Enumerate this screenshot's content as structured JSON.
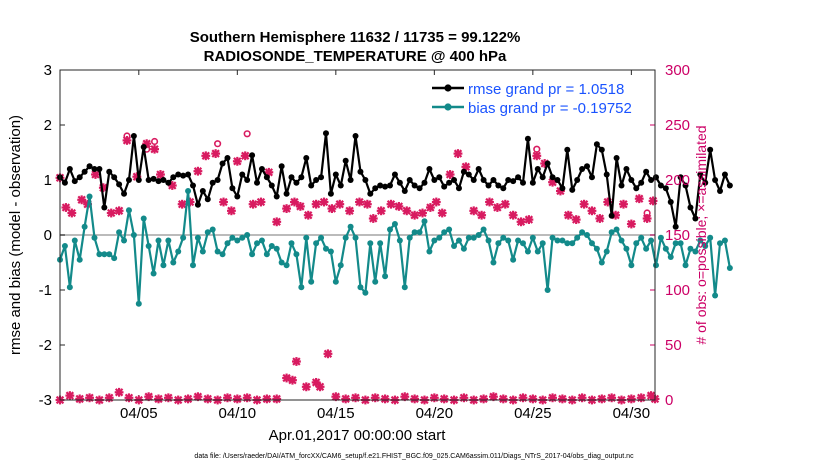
{
  "chart_data": {
    "type": "line",
    "title": "Southern Hemisphere 11632 / 11735 = 99.122%",
    "subtitle": "RADIOSONDE_TEMPERATURE @ 400 hPa",
    "ylabel": "rmse and bias (model - observation)",
    "ylabel_right": "# of obs: o=possible; ×=assimilated",
    "xlabel": "Apr.01,2017 00:00:00 start",
    "footer": "data file: /Users/raeder/DAI/ATM_forcXX/CAM6_setup/f.e21.FHIST_BGC.f09_025.CAM6assim.011/Diags_NTrS_2017-04/obs_diag_output.nc",
    "xlim": [
      1.0,
      31.2
    ],
    "ylim": [
      -3,
      3
    ],
    "ylim_right": [
      0,
      300
    ],
    "x_ticks": [
      {
        "x": 5,
        "label": "04/05"
      },
      {
        "x": 10,
        "label": "04/10"
      },
      {
        "x": 15,
        "label": "04/15"
      },
      {
        "x": 20,
        "label": "04/20"
      },
      {
        "x": 25,
        "label": "04/25"
      },
      {
        "x": 30,
        "label": "04/30"
      }
    ],
    "y_ticks": [
      "-3",
      "-2",
      "-1",
      "0",
      "1",
      "2",
      "3"
    ],
    "y_ticks_right": [
      "0",
      "50",
      "100",
      "150",
      "200",
      "250",
      "300"
    ],
    "legend": {
      "placement": "top-right",
      "entries": [
        "rmse grand pr = 1.0518",
        "bias grand pr = -0.19752"
      ]
    },
    "colors": {
      "rmse": "#000000",
      "bias": "#138a8a",
      "obs": "#d81b60",
      "legend_text": "#1a53ff",
      "right_axis": "#cc0066",
      "zero_line": "#bbbbbb"
    },
    "x_start": 1.0,
    "x_step": 0.25,
    "series": [
      {
        "name": "rmse",
        "values": [
          1.05,
          0.95,
          1.2,
          0.98,
          1.05,
          1.15,
          1.25,
          1.2,
          1.2,
          0.5,
          1.15,
          1.05,
          0.92,
          0.75,
          1.0,
          1.8,
          1.0,
          1.6,
          1.0,
          1.02,
          0.98,
          1.0,
          0.95,
          1.05,
          1.1,
          1.08,
          1.1,
          0.9,
          0.55,
          0.8,
          0.65,
          0.95,
          1.0,
          1.3,
          1.4,
          0.85,
          0.7,
          1.1,
          1.0,
          1.45,
          0.95,
          1.2,
          1.05,
          0.9,
          0.7,
          1.25,
          0.75,
          1.05,
          0.95,
          1.05,
          1.4,
          0.9,
          1.0,
          1.05,
          1.85,
          0.75,
          1.1,
          0.9,
          1.35,
          1.0,
          1.8,
          1.15,
          1.0,
          0.75,
          0.85,
          0.9,
          0.88,
          0.9,
          1.1,
          0.95,
          0.8,
          1.0,
          0.9,
          0.85,
          0.95,
          1.2,
          1.0,
          1.05,
          0.88,
          0.95,
          1.0,
          0.85,
          1.15,
          1.1,
          1.0,
          1.2,
          1.0,
          0.9,
          1.0,
          0.9,
          0.85,
          1.0,
          0.98,
          1.05,
          0.95,
          1.75,
          0.95,
          1.2,
          1.05,
          1.3,
          1.05,
          1.0,
          0.85,
          1.55,
          0.82,
          1.0,
          1.2,
          1.25,
          1.05,
          1.65,
          1.55,
          1.1,
          0.35,
          1.4,
          0.9,
          1.2,
          1.0,
          0.85,
          0.95,
          1.15,
          1.0,
          1.05,
          0.9,
          0.85,
          0.6,
          0.15,
          1.05,
          0.9,
          0.5,
          0.3,
          1.1,
          0.95,
          1.55,
          1.0,
          0.8,
          1.1,
          0.9
        ]
      },
      {
        "name": "bias",
        "values": [
          -0.45,
          -0.2,
          -0.95,
          -0.1,
          -0.45,
          0.15,
          0.7,
          -0.05,
          -0.35,
          -0.35,
          -0.35,
          -0.42,
          0.05,
          -0.1,
          0.45,
          0.0,
          -1.25,
          0.3,
          -0.2,
          -0.7,
          -0.1,
          -0.55,
          -0.1,
          -0.5,
          -0.3,
          -0.05,
          0.8,
          -0.55,
          -0.05,
          -0.3,
          0.05,
          0.1,
          -0.3,
          -0.35,
          -0.15,
          -0.05,
          -0.1,
          -0.05,
          0.0,
          -0.35,
          -0.15,
          -0.1,
          -0.35,
          -0.2,
          -0.25,
          -0.5,
          -0.55,
          -0.15,
          -0.35,
          -0.95,
          -0.05,
          -0.85,
          -0.15,
          -0.05,
          -0.25,
          -0.3,
          -0.85,
          -0.55,
          -0.05,
          0.15,
          -0.05,
          -0.95,
          -1.05,
          -0.15,
          -0.85,
          -0.15,
          -0.75,
          0.1,
          0.2,
          -0.1,
          -0.95,
          -0.05,
          0.05,
          0.05,
          0.25,
          -0.3,
          -0.1,
          -0.05,
          0.05,
          0.1,
          -0.2,
          -0.1,
          -0.25,
          -0.05,
          -0.05,
          0.0,
          0.1,
          -0.1,
          -0.5,
          -0.15,
          -0.05,
          -0.1,
          -0.45,
          -0.1,
          -0.15,
          -0.3,
          -0.05,
          -0.3,
          -0.15,
          -1.0,
          -0.05,
          -0.1,
          -0.1,
          -0.15,
          -0.15,
          -0.05,
          0.05,
          0.0,
          -0.15,
          -0.25,
          -0.5,
          -0.3,
          0.05,
          0.1,
          -0.1,
          -0.25,
          -0.55,
          -0.15,
          -0.05,
          -0.25,
          -0.1,
          -0.55,
          -0.05,
          -0.25,
          -0.4,
          -0.15,
          -0.15,
          -0.55,
          -0.25,
          -0.3,
          -0.1,
          -0.2,
          -0.05,
          -1.1,
          -0.15,
          -0.1,
          -0.6
        ]
      },
      {
        "name": "obs_assimilated",
        "points": [
          [
            1.0,
            202
          ],
          [
            1.3,
            175
          ],
          [
            1.6,
            170
          ],
          [
            2.1,
            182
          ],
          [
            2.4,
            178
          ],
          [
            2.8,
            205
          ],
          [
            3.2,
            193
          ],
          [
            3.6,
            170
          ],
          [
            4.0,
            172
          ],
          [
            4.4,
            236
          ],
          [
            4.9,
            203
          ],
          [
            5.4,
            233
          ],
          [
            5.8,
            228
          ],
          [
            6.1,
            205
          ],
          [
            6.7,
            195
          ],
          [
            7.2,
            178
          ],
          [
            7.6,
            180
          ],
          [
            8.0,
            208
          ],
          [
            8.4,
            222
          ],
          [
            8.9,
            224
          ],
          [
            9.3,
            180
          ],
          [
            9.7,
            172
          ],
          [
            10.0,
            217
          ],
          [
            10.4,
            222
          ],
          [
            10.8,
            178
          ],
          [
            11.2,
            180
          ],
          [
            11.6,
            207
          ],
          [
            12.0,
            162
          ],
          [
            12.5,
            174
          ],
          [
            12.9,
            180
          ],
          [
            13.2,
            176
          ],
          [
            13.6,
            168
          ],
          [
            14.0,
            178
          ],
          [
            14.4,
            180
          ],
          [
            14.8,
            174
          ],
          [
            15.2,
            178
          ],
          [
            15.7,
            172
          ],
          [
            16.2,
            180
          ],
          [
            16.6,
            178
          ],
          [
            16.9,
            165
          ],
          [
            17.3,
            172
          ],
          [
            17.8,
            178
          ],
          [
            18.2,
            176
          ],
          [
            18.6,
            172
          ],
          [
            19.0,
            168
          ],
          [
            19.4,
            170
          ],
          [
            19.8,
            175
          ],
          [
            20.1,
            180
          ],
          [
            20.4,
            170
          ],
          [
            20.8,
            205
          ],
          [
            21.2,
            224
          ],
          [
            21.6,
            212
          ],
          [
            22.0,
            172
          ],
          [
            22.4,
            168
          ],
          [
            22.8,
            180
          ],
          [
            23.2,
            175
          ],
          [
            23.6,
            178
          ],
          [
            24.0,
            168
          ],
          [
            24.4,
            162
          ],
          [
            24.8,
            164
          ],
          [
            25.2,
            222
          ],
          [
            25.6,
            215
          ],
          [
            26.0,
            198
          ],
          [
            26.4,
            190
          ],
          [
            26.8,
            168
          ],
          [
            27.2,
            164
          ],
          [
            27.6,
            178
          ],
          [
            28.0,
            172
          ],
          [
            28.4,
            165
          ],
          [
            28.8,
            180
          ],
          [
            29.2,
            168
          ],
          [
            29.6,
            178
          ],
          [
            30.0,
            160
          ],
          [
            30.4,
            183
          ],
          [
            30.8,
            165
          ],
          [
            31.1,
            181
          ]
        ]
      },
      {
        "name": "obs_possible",
        "points": [
          [
            4.4,
            240
          ],
          [
            5.4,
            228
          ],
          [
            5.8,
            235
          ],
          [
            9.0,
            233
          ],
          [
            10.5,
            242
          ],
          [
            25.2,
            228
          ],
          [
            30.8,
            170
          ]
        ]
      },
      {
        "name": "obs_low",
        "points": [
          [
            1.0,
            0
          ],
          [
            1.5,
            4
          ],
          [
            2.0,
            1
          ],
          [
            2.5,
            2
          ],
          [
            3.0,
            0
          ],
          [
            3.5,
            2
          ],
          [
            4.0,
            7
          ],
          [
            4.5,
            2
          ],
          [
            5.0,
            0
          ],
          [
            5.5,
            3
          ],
          [
            6.0,
            1
          ],
          [
            6.5,
            2
          ],
          [
            7.0,
            0
          ],
          [
            7.5,
            1
          ],
          [
            8.0,
            3
          ],
          [
            8.5,
            1
          ],
          [
            9.0,
            0
          ],
          [
            9.5,
            2
          ],
          [
            10.0,
            1
          ],
          [
            10.5,
            2
          ],
          [
            11.0,
            0
          ],
          [
            11.5,
            1
          ],
          [
            12.0,
            1
          ],
          [
            12.5,
            20
          ],
          [
            12.8,
            18
          ],
          [
            13.0,
            35
          ],
          [
            13.5,
            12
          ],
          [
            14.0,
            16
          ],
          [
            14.2,
            12
          ],
          [
            14.6,
            42
          ],
          [
            15.0,
            3
          ],
          [
            15.5,
            1
          ],
          [
            16.0,
            2
          ],
          [
            16.5,
            0
          ],
          [
            17.0,
            2
          ],
          [
            17.5,
            1
          ],
          [
            18.0,
            0
          ],
          [
            18.5,
            3
          ],
          [
            19.0,
            1
          ],
          [
            19.5,
            0
          ],
          [
            20.0,
            2
          ],
          [
            20.5,
            1
          ],
          [
            21.0,
            0
          ],
          [
            21.5,
            2
          ],
          [
            22.0,
            0
          ],
          [
            22.5,
            1
          ],
          [
            23.0,
            3
          ],
          [
            23.5,
            1
          ],
          [
            24.0,
            0
          ],
          [
            24.5,
            2
          ],
          [
            25.0,
            1
          ],
          [
            25.5,
            0
          ],
          [
            26.0,
            2
          ],
          [
            26.5,
            1
          ],
          [
            27.0,
            0
          ],
          [
            27.5,
            2
          ],
          [
            28.0,
            0
          ],
          [
            28.5,
            1
          ],
          [
            29.0,
            2
          ],
          [
            29.5,
            0
          ],
          [
            30.0,
            1
          ],
          [
            30.5,
            2
          ],
          [
            31.0,
            4
          ],
          [
            31.2,
            1
          ]
        ]
      }
    ]
  }
}
